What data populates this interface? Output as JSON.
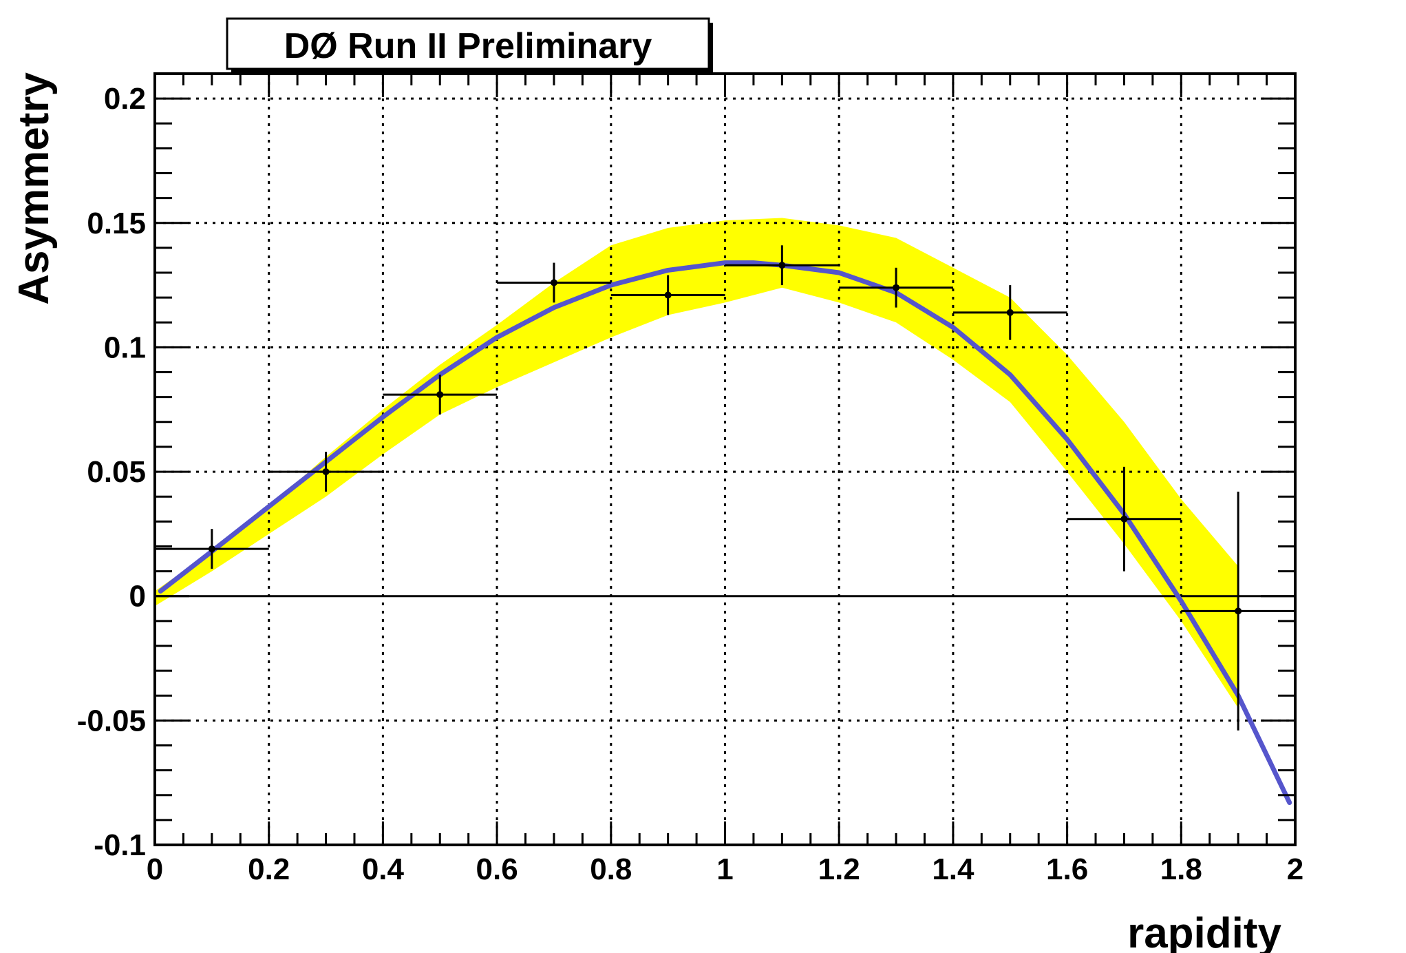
{
  "chart_data": {
    "type": "scatter",
    "title": "DØ Run II Preliminary",
    "xlabel": "rapidity",
    "ylabel": "Asymmetry",
    "xlim": [
      0,
      2
    ],
    "ylim": [
      -0.1,
      0.21
    ],
    "x_ticks": [
      "0",
      "0.2",
      "0.4",
      "0.6",
      "0.8",
      "1",
      "1.2",
      "1.4",
      "1.6",
      "1.8",
      "2"
    ],
    "x_tick_values": [
      0,
      0.2,
      0.4,
      0.6,
      0.8,
      1.0,
      1.2,
      1.4,
      1.6,
      1.8,
      2.0
    ],
    "y_ticks": [
      "-0.1",
      "-0.05",
      "0",
      "0.05",
      "0.1",
      "0.15",
      "0.2"
    ],
    "y_tick_values": [
      -0.1,
      -0.05,
      0,
      0.05,
      0.1,
      0.15,
      0.2
    ],
    "grid": true,
    "colors": {
      "curve": "#5555cc",
      "band": "#ffff00",
      "points": "#000000"
    },
    "points": [
      {
        "x": 0.1,
        "y": 0.019,
        "xerr": 0.1,
        "yerr": 0.008
      },
      {
        "x": 0.3,
        "y": 0.05,
        "xerr": 0.1,
        "yerr": 0.008
      },
      {
        "x": 0.5,
        "y": 0.081,
        "xerr": 0.1,
        "yerr": 0.008
      },
      {
        "x": 0.7,
        "y": 0.126,
        "xerr": 0.1,
        "yerr": 0.008
      },
      {
        "x": 0.9,
        "y": 0.121,
        "xerr": 0.1,
        "yerr": 0.008
      },
      {
        "x": 1.1,
        "y": 0.133,
        "xerr": 0.1,
        "yerr": 0.008
      },
      {
        "x": 1.3,
        "y": 0.124,
        "xerr": 0.1,
        "yerr": 0.008
      },
      {
        "x": 1.5,
        "y": 0.114,
        "xerr": 0.1,
        "yerr": 0.011
      },
      {
        "x": 1.7,
        "y": 0.031,
        "xerr": 0.1,
        "yerr": 0.021
      },
      {
        "x": 1.9,
        "y": -0.006,
        "xerr": 0.1,
        "yerr": 0.048
      }
    ],
    "curve": {
      "x": [
        0.01,
        0.1,
        0.2,
        0.3,
        0.4,
        0.5,
        0.6,
        0.7,
        0.8,
        0.9,
        1.0,
        1.05,
        1.1,
        1.2,
        1.3,
        1.4,
        1.5,
        1.6,
        1.7,
        1.8,
        1.9,
        1.99
      ],
      "y": [
        0.002,
        0.018,
        0.036,
        0.054,
        0.072,
        0.089,
        0.104,
        0.116,
        0.125,
        0.131,
        0.134,
        0.134,
        0.133,
        0.13,
        0.122,
        0.108,
        0.089,
        0.063,
        0.033,
        -0.002,
        -0.04,
        -0.083
      ]
    },
    "band": {
      "x": [
        0.0,
        0.1,
        0.2,
        0.3,
        0.4,
        0.5,
        0.6,
        0.7,
        0.8,
        0.9,
        1.0,
        1.1,
        1.2,
        1.3,
        1.4,
        1.5,
        1.6,
        1.7,
        1.8,
        1.9
      ],
      "upper": [
        0.002,
        0.018,
        0.036,
        0.056,
        0.075,
        0.093,
        0.109,
        0.126,
        0.141,
        0.148,
        0.151,
        0.152,
        0.149,
        0.144,
        0.132,
        0.12,
        0.097,
        0.07,
        0.039,
        0.012
      ],
      "lower": [
        -0.004,
        0.01,
        0.025,
        0.04,
        0.057,
        0.073,
        0.084,
        0.094,
        0.104,
        0.113,
        0.118,
        0.124,
        0.118,
        0.11,
        0.095,
        0.078,
        0.05,
        0.021,
        -0.01,
        -0.045
      ]
    }
  }
}
